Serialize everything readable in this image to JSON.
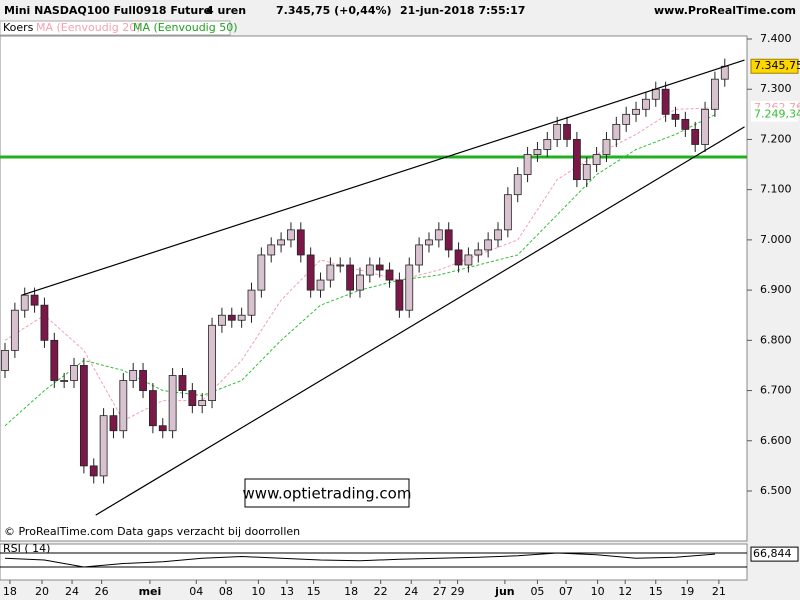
{
  "chart_data": {
    "type": "candlestick",
    "title": "Mini NASDAQ100 Full0918 Future",
    "timeframe": "4 uren",
    "last_quote": "7.345,75 (+0,44%)",
    "timestamp": "21-jun-2018 7:55:17",
    "site": "www.ProRealTime.com",
    "footer": "© ProRealTime.com  Data gaps verzacht bij doorrollen",
    "watermark": "www.optietrading.com",
    "price_name": "Koers",
    "open": [
      6740,
      6780,
      6860,
      6890,
      6870,
      6800,
      6720,
      6720,
      6750,
      6550,
      6530,
      6650,
      6620,
      6720,
      6740,
      6700,
      6630,
      6620,
      6730,
      6700,
      6670,
      6680,
      6830,
      6850,
      6840,
      6850,
      6900,
      6970,
      6990,
      7000,
      7020,
      6970,
      6900,
      6920,
      6950,
      6950,
      6900,
      6930,
      6950,
      6940,
      6920,
      6860,
      6950,
      6990,
      7000,
      7020,
      6980,
      6950,
      6970,
      6980,
      7000,
      7020,
      7090,
      7130,
      7170,
      7180,
      7200,
      7230,
      7200,
      7120,
      7150,
      7170,
      7200,
      7230,
      7250,
      7260,
      7280,
      7300,
      7250,
      7240,
      7220,
      7190,
      7260,
      7320
    ],
    "high": [
      6795,
      6875,
      6905,
      6905,
      6885,
      6815,
      6735,
      6765,
      6765,
      6565,
      6665,
      6665,
      6735,
      6755,
      6755,
      6715,
      6645,
      6745,
      6745,
      6715,
      6695,
      6845,
      6865,
      6865,
      6865,
      6915,
      6985,
      7005,
      7015,
      7035,
      7035,
      6985,
      6935,
      6965,
      6965,
      6965,
      6945,
      6965,
      6965,
      6955,
      6935,
      6965,
      7005,
      7015,
      7035,
      7035,
      6995,
      6985,
      6995,
      7015,
      7035,
      7105,
      7145,
      7185,
      7195,
      7215,
      7245,
      7245,
      7215,
      7165,
      7185,
      7215,
      7245,
      7265,
      7275,
      7295,
      7315,
      7315,
      7265,
      7255,
      7235,
      7275,
      7335,
      7361
    ],
    "low": [
      6725,
      6765,
      6845,
      6855,
      6785,
      6705,
      6705,
      6705,
      6535,
      6515,
      6515,
      6605,
      6605,
      6705,
      6685,
      6615,
      6605,
      6605,
      6685,
      6655,
      6655,
      6665,
      6815,
      6825,
      6825,
      6835,
      6885,
      6955,
      6975,
      6985,
      6955,
      6885,
      6885,
      6905,
      6935,
      6885,
      6885,
      6915,
      6925,
      6905,
      6845,
      6845,
      6935,
      6975,
      6985,
      6965,
      6935,
      6935,
      6955,
      6965,
      6985,
      7005,
      7075,
      7115,
      7155,
      7165,
      7185,
      7185,
      7105,
      7105,
      7135,
      7155,
      7185,
      7215,
      7235,
      7245,
      7265,
      7235,
      7225,
      7205,
      7175,
      7175,
      7245,
      7305
    ],
    "close": [
      6780,
      6860,
      6890,
      6870,
      6800,
      6720,
      6720,
      6750,
      6550,
      6530,
      6650,
      6620,
      6720,
      6740,
      6700,
      6630,
      6620,
      6730,
      6700,
      6670,
      6680,
      6830,
      6850,
      6840,
      6850,
      6900,
      6970,
      6990,
      7000,
      7020,
      6970,
      6900,
      6920,
      6950,
      6950,
      6900,
      6930,
      6950,
      6940,
      6920,
      6860,
      6950,
      6990,
      7000,
      7020,
      6980,
      6950,
      6970,
      6980,
      7000,
      7020,
      7090,
      7130,
      7170,
      7180,
      7200,
      7230,
      7200,
      7120,
      7150,
      7170,
      7200,
      7230,
      7250,
      7260,
      7280,
      7300,
      7250,
      7240,
      7220,
      7190,
      7260,
      7320,
      7345.75
    ],
    "last_label": "7.345,75",
    "overlay_x": [
      0,
      4,
      8,
      12,
      16,
      20,
      24,
      28,
      32,
      36,
      40,
      44,
      48,
      52,
      56,
      60,
      64,
      68,
      72
    ],
    "series": [
      {
        "name": "MA (Eenvoudig 20)",
        "color": "#f4a0b0",
        "values": [
          6800,
          6850,
          6780,
          6640,
          6680,
          6680,
          6760,
          6880,
          6960,
          6940,
          6920,
          6940,
          6970,
          7000,
          7120,
          7170,
          7210,
          7260,
          7262.76
        ],
        "last_label": "7.262,76"
      },
      {
        "name": "MA (Eenvoudig 50)",
        "color": "#30c030",
        "values": [
          6630,
          6700,
          6760,
          6740,
          6700,
          6690,
          6720,
          6800,
          6870,
          6900,
          6920,
          6930,
          6950,
          6970,
          7050,
          7130,
          7180,
          7210,
          7249.34
        ],
        "last_label": "7.249,34"
      }
    ],
    "horizontal_line": {
      "value": 7165,
      "color": "#22b022"
    },
    "trendlines": [
      {
        "x": [
          1.7,
          75
        ],
        "y": [
          6890,
          7358
        ]
      },
      {
        "x": [
          9.2,
          75
        ],
        "y": [
          6452,
          7225
        ]
      }
    ],
    "ylim": [
      6400,
      7400
    ],
    "yticks": [
      {
        "value": 7400,
        "label": "7.400"
      },
      {
        "value": 7300,
        "label": "7.300"
      },
      {
        "value": 7200,
        "label": "7.200"
      },
      {
        "value": 7100,
        "label": "7.100"
      },
      {
        "value": 7000,
        "label": "7.000"
      },
      {
        "value": 6900,
        "label": "6.900"
      },
      {
        "value": 6800,
        "label": "6.800"
      },
      {
        "value": 6700,
        "label": "6.700"
      },
      {
        "value": 6600,
        "label": "6.600"
      },
      {
        "value": 6500,
        "label": "6.500"
      }
    ],
    "xticks": [
      {
        "value": 0.5,
        "label": "18"
      },
      {
        "value": 3.75,
        "label": "20"
      },
      {
        "value": 6.8,
        "label": "24"
      },
      {
        "value": 9.8,
        "label": "26"
      },
      {
        "value": 14.7,
        "label": "mei"
      },
      {
        "value": 19.4,
        "label": "04"
      },
      {
        "value": 22.4,
        "label": "08"
      },
      {
        "value": 25.7,
        "label": "10"
      },
      {
        "value": 28.6,
        "label": "13"
      },
      {
        "value": 31.3,
        "label": "15"
      },
      {
        "value": 35.1,
        "label": "18"
      },
      {
        "value": 38.1,
        "label": "22"
      },
      {
        "value": 41.2,
        "label": "24"
      },
      {
        "value": 44.1,
        "label": "27"
      },
      {
        "value": 45.9,
        "label": "29"
      },
      {
        "value": 50.7,
        "label": "jun"
      },
      {
        "value": 54,
        "label": "05"
      },
      {
        "value": 56.9,
        "label": "07"
      },
      {
        "value": 60.1,
        "label": "10"
      },
      {
        "value": 62.9,
        "label": "12"
      },
      {
        "value": 66,
        "label": "15"
      },
      {
        "value": 69.2,
        "label": "19"
      },
      {
        "value": 72.4,
        "label": "21"
      }
    ],
    "rsi": {
      "name": "RSI ( 14)",
      "values": [
        55,
        50,
        30,
        40,
        45,
        55,
        60,
        55,
        50,
        48,
        52,
        55,
        58,
        62,
        70,
        65,
        55,
        58,
        66.844
      ],
      "last_label": "66,844",
      "ylim": [
        0,
        100
      ],
      "levels": [
        30,
        70
      ]
    }
  }
}
